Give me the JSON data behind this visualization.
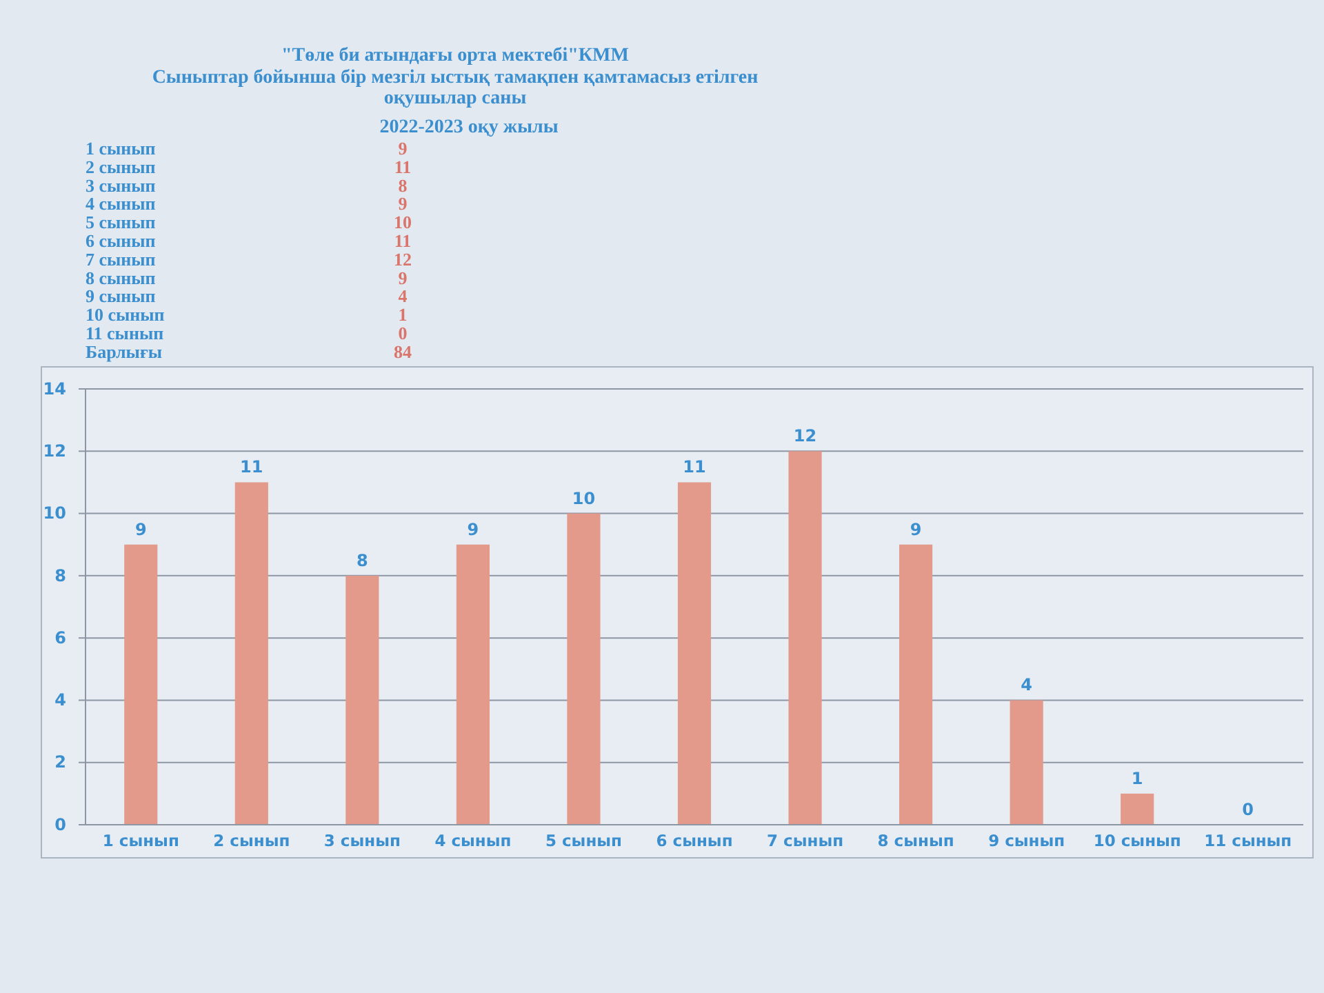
{
  "chart_data": {
    "type": "bar",
    "title": "\"Төле би атындағы орта мектебі\"КММ",
    "subtitle": "Сыныптар бойынша бір мезгіл ыстық тамақпен қамтамасыз етілген оқушылар саны",
    "categories": [
      "1 сынып",
      "2 сынып",
      "3 сынып",
      "4 сынып",
      "5 сынып",
      "6 сынып",
      "7 сынып",
      "8 сынып",
      "9 сынып",
      "10 сынып",
      "11 сынып"
    ],
    "values": [
      9,
      11,
      8,
      9,
      10,
      11,
      12,
      9,
      4,
      1,
      0
    ],
    "color": "#e49a8a",
    "ylim": [
      0,
      14
    ],
    "yticks": [
      0,
      2,
      4,
      6,
      8,
      10,
      12,
      14
    ],
    "grid": "y",
    "data_labels": true,
    "annotations": [
      "2022-2023 оқу жылы",
      "9",
      "11",
      "8",
      "9",
      "10",
      "11",
      "12",
      "9",
      "4",
      "1",
      "0",
      "Барлығы",
      "84"
    ]
  }
}
